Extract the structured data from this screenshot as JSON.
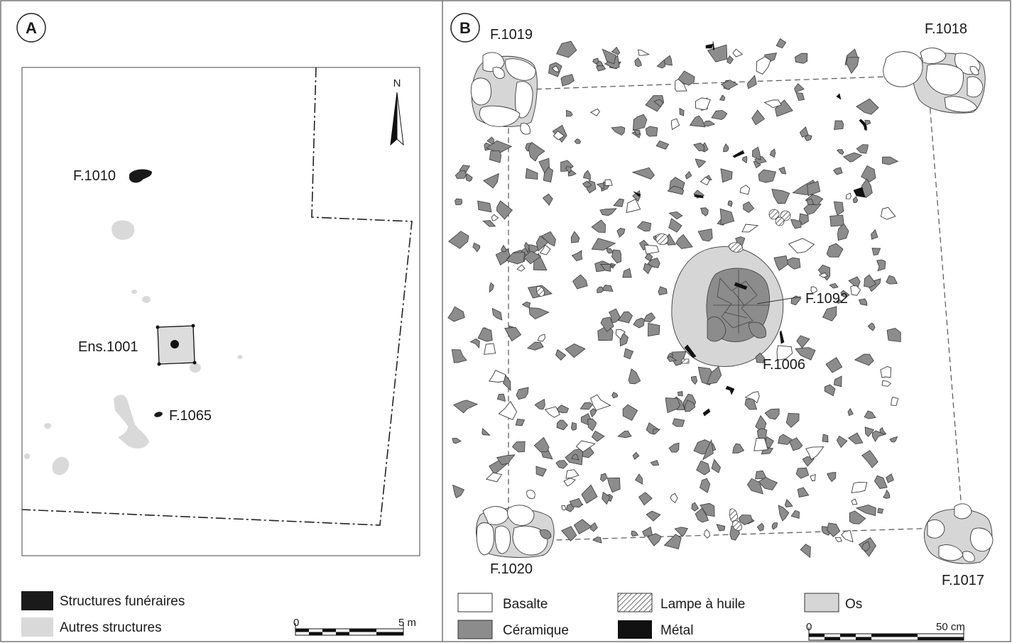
{
  "panel_a": {
    "badge": "A",
    "north": "N",
    "labels": {
      "f1010": "F.1010",
      "ens1001": "Ens.1001",
      "f1065": "F.1065"
    },
    "legend": {
      "funeraires": "Structures funéraires",
      "autres": "Autres structures"
    },
    "scale": {
      "start": "0",
      "end": "5 m"
    },
    "colors": {
      "funeraires": "#1a1a1a",
      "autres": "#d9d9d9"
    }
  },
  "panel_b": {
    "badge": "B",
    "labels": {
      "f1019": "F.1019",
      "f1018": "F.1018",
      "f1020": "F.1020",
      "f1017": "F.1017",
      "f1092": "F.1092",
      "f1006": "F.1006"
    },
    "legend": {
      "basalte": "Basalte",
      "ceramique": "Céramique",
      "lampe": "Lampe à huile",
      "metal": "Métal",
      "os": "Os"
    },
    "scale": {
      "start": "0",
      "end": "50 cm"
    },
    "colors": {
      "ceramique": "#8c8c8c",
      "basalte": "#ffffff",
      "metal": "#111111",
      "os": "#d6d6d6"
    }
  }
}
